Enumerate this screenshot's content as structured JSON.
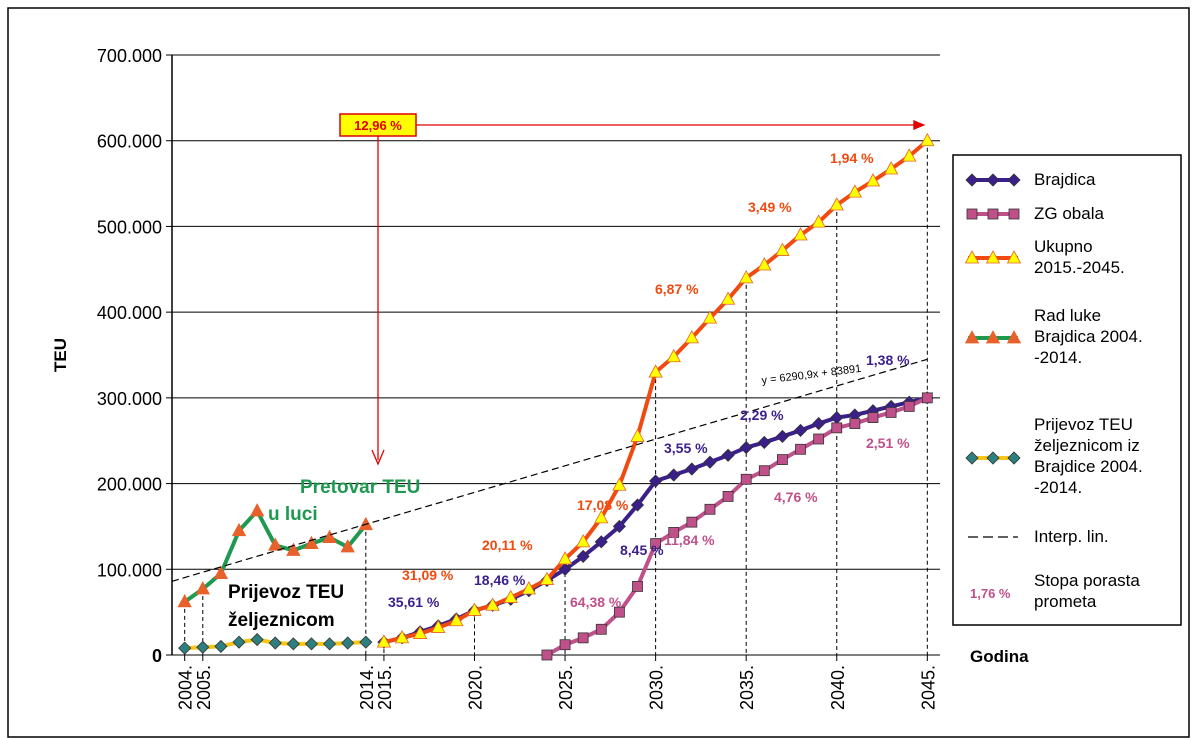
{
  "chart_data": {
    "type": "line",
    "y_label": "TEU",
    "x_label": "Godina",
    "xlim": [
      2003.3,
      2045.7
    ],
    "ylim": [
      0,
      700000
    ],
    "xticks": [
      {
        "value": 2004,
        "label": "2004."
      },
      {
        "value": 2005,
        "label": "2005."
      },
      {
        "value": 2014,
        "label": "2014."
      },
      {
        "value": 2015,
        "label": "2015."
      },
      {
        "value": 2020,
        "label": "2020."
      },
      {
        "value": 2025,
        "label": "2025."
      },
      {
        "value": 2030,
        "label": "2030."
      },
      {
        "value": 2035,
        "label": "2035."
      },
      {
        "value": 2040,
        "label": "2040."
      },
      {
        "value": 2045,
        "label": "2045."
      }
    ],
    "yticks": [
      0,
      {
        "value": 100000,
        "label": "100.000"
      },
      {
        "value": 200000,
        "label": "200.000"
      },
      {
        "value": 300000,
        "label": "300.000"
      },
      {
        "value": 400000,
        "label": "400.000"
      },
      {
        "value": 500000,
        "label": "500.000"
      },
      {
        "value": 600000,
        "label": "600.000"
      },
      {
        "value": 700000,
        "label": "700.000"
      }
    ],
    "grid": true,
    "series": [
      {
        "name": "Brajdica",
        "color": "#3b1f8a",
        "marker": "diamond",
        "marker_color": "#3b1f8a",
        "x": [
          2015,
          2016,
          2017,
          2018,
          2019,
          2020,
          2021,
          2022,
          2023,
          2024,
          2025,
          2026,
          2027,
          2028,
          2029,
          2030,
          2031,
          2032,
          2033,
          2034,
          2035,
          2036,
          2037,
          2038,
          2039,
          2040,
          2041,
          2042,
          2043,
          2044,
          2045
        ],
        "values": [
          15000,
          20000,
          27000,
          34000,
          42000,
          52000,
          58000,
          65000,
          75000,
          87000,
          100000,
          115000,
          132000,
          150000,
          175000,
          203000,
          210000,
          217000,
          225000,
          233000,
          242000,
          248000,
          255000,
          262000,
          270000,
          277000,
          280000,
          285000,
          290000,
          295000,
          300000
        ]
      },
      {
        "name": "ZG obala",
        "color": "#c0508a",
        "marker": "square",
        "marker_color": "#c0508a",
        "x": [
          2024,
          2025,
          2026,
          2027,
          2028,
          2029,
          2030,
          2031,
          2032,
          2033,
          2034,
          2035,
          2036,
          2037,
          2038,
          2039,
          2040,
          2041,
          2042,
          2043,
          2044,
          2045
        ],
        "values": [
          0,
          12000,
          20000,
          30000,
          50000,
          80000,
          130000,
          143000,
          155000,
          170000,
          185000,
          205000,
          215000,
          228000,
          240000,
          252000,
          265000,
          270000,
          277000,
          283000,
          290000,
          300000
        ]
      },
      {
        "name": "Ukupno 2015.-2045.",
        "color": "#f04a10",
        "marker": "triangle",
        "marker_color": "#ffff00",
        "x": [
          2015,
          2016,
          2017,
          2018,
          2019,
          2020,
          2021,
          2022,
          2023,
          2024,
          2025,
          2026,
          2027,
          2028,
          2029,
          2030,
          2031,
          2032,
          2033,
          2034,
          2035,
          2036,
          2037,
          2038,
          2039,
          2040,
          2041,
          2042,
          2043,
          2044,
          2045
        ],
        "values": [
          15000,
          20000,
          25000,
          32000,
          40000,
          52000,
          58000,
          67000,
          77000,
          88000,
          112000,
          132000,
          160000,
          198000,
          255000,
          330000,
          348000,
          370000,
          393000,
          415000,
          440000,
          455000,
          472000,
          490000,
          505000,
          525000,
          540000,
          553000,
          567000,
          582000,
          600000
        ]
      },
      {
        "name": "Rad luke Brajdica 2004. -2014.",
        "color": "#1e9950",
        "marker": "triangle",
        "marker_color": "#e8602a",
        "x": [
          2004,
          2005,
          2006,
          2007,
          2008,
          2009,
          2010,
          2011,
          2012,
          2013,
          2014
        ],
        "values": [
          62000,
          77000,
          95000,
          145000,
          168000,
          128000,
          122000,
          130000,
          137000,
          126000,
          152000
        ]
      },
      {
        "name": "Prijevoz TEU željeznicom iz Brajdice 2004. -2014.",
        "color": "#f5c518",
        "marker": "diamond",
        "marker_color": "#2e7f80",
        "x": [
          2004,
          2005,
          2006,
          2007,
          2008,
          2009,
          2010,
          2011,
          2012,
          2013,
          2014
        ],
        "values": [
          8000,
          9000,
          10000,
          15000,
          18000,
          14000,
          13000,
          13000,
          13000,
          14000,
          15000
        ]
      },
      {
        "name": "Interp. lin.",
        "color": "#000000",
        "dashed": true,
        "x": [
          2003.3,
          2045
        ],
        "values": [
          86000,
          345000
        ]
      }
    ],
    "rate_legend": {
      "sample": "1,76 %",
      "name": "Stopa porasta prometa",
      "color": "#c0508a"
    },
    "overall_rate": {
      "text": "12,96 %",
      "color": "#e00000"
    },
    "area_labels": [
      {
        "lines": [
          "Pretovar TEU",
          "u luci"
        ],
        "color": "#1e9950"
      },
      {
        "lines": [
          "Prijevoz TEU",
          "željeznicom"
        ],
        "color": "#000000"
      }
    ],
    "growth_labels": [
      {
        "text": "31,09 %",
        "color": "#f04a10"
      },
      {
        "text": "20,11 %",
        "color": "#f04a10"
      },
      {
        "text": "17,08 %",
        "color": "#f04a10"
      },
      {
        "text": "6,87 %",
        "color": "#f04a10"
      },
      {
        "text": "3,49 %",
        "color": "#f04a10"
      },
      {
        "text": "1,94 %",
        "color": "#f04a10"
      },
      {
        "text": "35,61 %",
        "color": "#3b1f8a"
      },
      {
        "text": "18,46 %",
        "color": "#3b1f8a"
      },
      {
        "text": "8,45 %",
        "color": "#3b1f8a"
      },
      {
        "text": "3,55 %",
        "color": "#3b1f8a"
      },
      {
        "text": "2,29 %",
        "color": "#3b1f8a"
      },
      {
        "text": "1,38 %",
        "color": "#3b1f8a"
      },
      {
        "text": "64,38 %",
        "color": "#c0508a"
      },
      {
        "text": "11,84 %",
        "color": "#c0508a"
      },
      {
        "text": "4,76 %",
        "color": "#c0508a"
      },
      {
        "text": "2,51 %",
        "color": "#c0508a"
      }
    ],
    "trend_formula": "y = 6290,9x + 83891"
  }
}
